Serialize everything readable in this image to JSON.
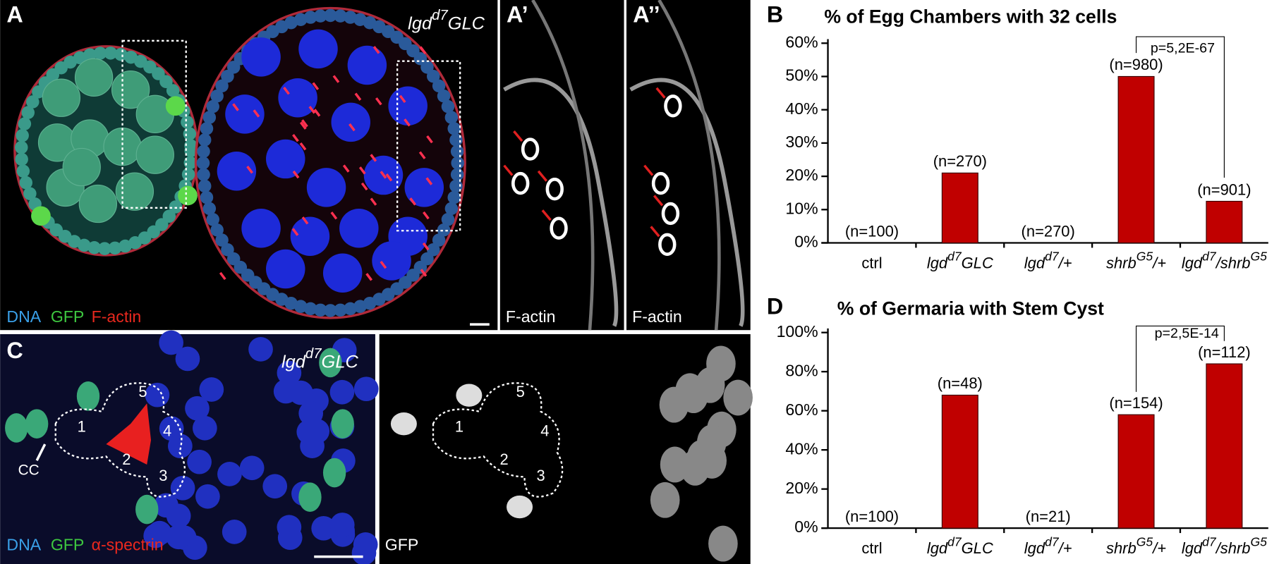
{
  "panels": {
    "A": {
      "label": "A",
      "genotype": [
        "lgd",
        "d7",
        "GLC"
      ],
      "stain": [
        "DNA",
        "GFP",
        "F-actin"
      ]
    },
    "A1": {
      "label": "A’",
      "stain": "F-actin"
    },
    "A2": {
      "label": "A’’",
      "stain": "F-actin"
    },
    "C": {
      "label": "C",
      "genotype": [
        "lgd",
        "d7",
        "GLC"
      ],
      "cysts": [
        "1",
        "2",
        "3",
        "4",
        "5"
      ],
      "cc": "CC",
      "stain": [
        "DNA",
        "GFP",
        "α-spectrin"
      ],
      "gfp": {
        "cysts": [
          "1",
          "2",
          "3",
          "4",
          "5"
        ],
        "stain": "GFP"
      }
    }
  },
  "chart_data": [
    {
      "type": "bar",
      "panel": "B",
      "title": "% of Egg Chambers with 32 cells",
      "categories": [
        "ctrl",
        [
          "lgd",
          "d7",
          "GLC"
        ],
        [
          "lgd",
          "d7",
          "/+"
        ],
        [
          "shrb",
          "G5",
          "/+"
        ],
        [
          "lgd",
          "d7",
          "/shrb",
          "G5"
        ]
      ],
      "values": [
        0,
        21,
        0,
        50,
        12.5
      ],
      "n_labels": [
        "(n=100)",
        "(n=270)",
        "(n=270)",
        "(n=980)",
        "(n=901)"
      ],
      "color": "#c00000",
      "ylim": [
        0,
        60
      ],
      "yticks": [
        {
          "value": 0,
          "label": "0%"
        },
        {
          "value": 10,
          "label": "10%"
        },
        {
          "value": 20,
          "label": "20%"
        },
        {
          "value": 30,
          "label": "30%"
        },
        {
          "value": 40,
          "label": "40%"
        },
        {
          "value": 50,
          "label": "50%"
        },
        {
          "value": 60,
          "label": "60%"
        }
      ],
      "significance": "p=5,2E-67"
    },
    {
      "type": "bar",
      "panel": "D",
      "title": "% of Germaria with Stem Cyst",
      "categories": [
        "ctrl",
        [
          "lgd",
          "d7",
          "GLC"
        ],
        [
          "lgd",
          "d7",
          "/+"
        ],
        [
          "shrb",
          "G5",
          "/+"
        ],
        [
          "lgd",
          "d7",
          "/shrb",
          "G5"
        ]
      ],
      "values": [
        0,
        68,
        0,
        58,
        84
      ],
      "n_labels": [
        "(n=100)",
        "(n=48)",
        "(n=21)",
        "(n=154)",
        "(n=112)"
      ],
      "color": "#c00000",
      "ylim": [
        0,
        100
      ],
      "yticks": [
        {
          "value": 0,
          "label": "0%"
        },
        {
          "value": 20,
          "label": "20%"
        },
        {
          "value": 40,
          "label": "40%"
        },
        {
          "value": 60,
          "label": "60%"
        },
        {
          "value": 80,
          "label": "80%"
        },
        {
          "value": 100,
          "label": "100%"
        }
      ],
      "significance": "p=2,5E-14"
    }
  ]
}
